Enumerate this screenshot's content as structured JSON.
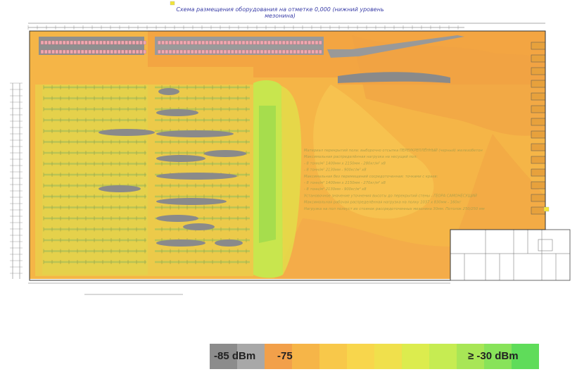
{
  "plan": {
    "title": "Схема размещения оборудования на отметке 0,000 (нижний уровень мезонина)",
    "notes": [
      "Материал перекрытий пола: выборочно отсыпка ПЕРЕУКРЕПЛЁННЫЙ (черный) железобетон",
      "Максимальная распределённая нагрузка на несущий пол:",
      "- 8 тонн/м² 1400мм х 2150мм - 280кг/м² х8",
      "- 8 тонн/м² 2130мм - 900кг/м² х8",
      "Максимальная без перемещений сосредоточенная: точками с краев:",
      "- 8 тонн/м² 1400мм х 2150мм - 270кг/м² х8",
      "- 8 тонн/м² 2130мм - 900кг/м² х8",
      "Установочное значение уточнения высоты до перекрытий стены - ГЕОРА САМОНЕСУЩИЙ",
      "Максимальная рабочая распределённая нагрузка на полку 1037 х 830мм - 160кг",
      "Нагрузка на пол полеуст их стоянок рассредоточенных мезонина 30мм. Потолок 250/250 мм"
    ]
  },
  "legend": {
    "min_label": "-85 dBm",
    "mid_label": "-75",
    "max_label": "≥ -30 dBm",
    "colors": [
      "#8c8c8c",
      "#a8a8a8",
      "#f2a04a",
      "#f6b548",
      "#f8c84a",
      "#f8d64c",
      "#f0e04c",
      "#dcec4e",
      "#c6ec52",
      "#a8e656",
      "#88e35a",
      "#5fdc5a"
    ]
  }
}
